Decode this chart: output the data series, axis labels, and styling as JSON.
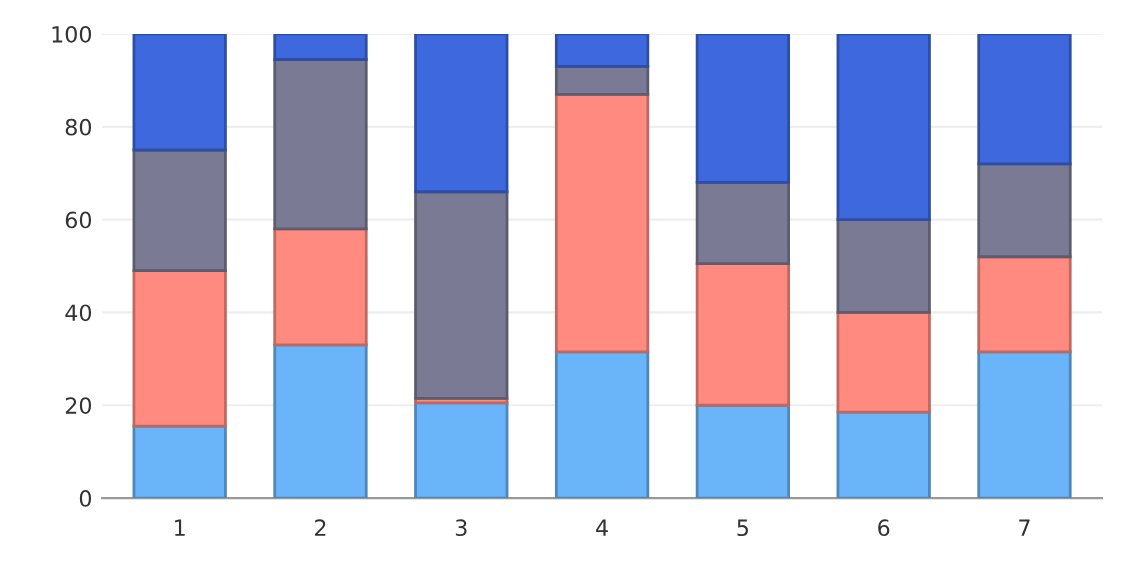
{
  "chart_data": {
    "type": "bar",
    "stacked": true,
    "categories": [
      "1",
      "2",
      "3",
      "4",
      "5",
      "6",
      "7"
    ],
    "series": [
      {
        "color": "#6ab4fa",
        "values": [
          15.5,
          33,
          20.5,
          31.5,
          20,
          18.5,
          31.5
        ]
      },
      {
        "color": "#ff8a80",
        "values": [
          33.5,
          25,
          1,
          55.5,
          30.5,
          21.5,
          20.5
        ]
      },
      {
        "color": "#7a7a94",
        "values": [
          26,
          36.5,
          44.5,
          6,
          17.5,
          20,
          20
        ]
      },
      {
        "color": "#3d68de",
        "values": [
          25,
          5.5,
          34,
          7,
          32,
          40,
          28
        ]
      }
    ],
    "ylim": [
      0,
      100
    ],
    "yticks": [
      0,
      20,
      40,
      60,
      80,
      100
    ],
    "grid": "y"
  }
}
